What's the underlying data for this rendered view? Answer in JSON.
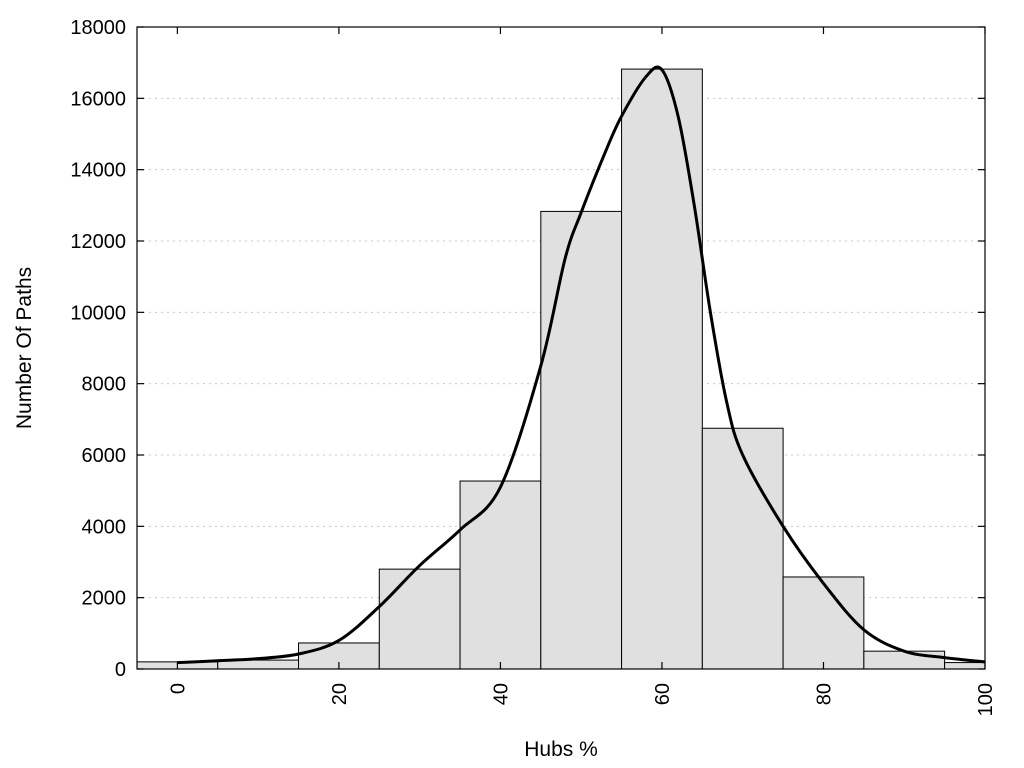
{
  "chart_data": {
    "type": "bar",
    "title": "",
    "xlabel": "Hubs %",
    "ylabel": "Number Of Paths",
    "xlim": [
      -5,
      100
    ],
    "ylim": [
      0,
      18000
    ],
    "grid": "horizontal dotted",
    "bin_width": 10,
    "bar_fill": "#e0e0e0",
    "bar_stroke": "#000000",
    "curve_color": "#000000",
    "x_ticks": [
      "0",
      "20",
      "40",
      "60",
      "80",
      "100"
    ],
    "y_ticks": [
      "0",
      "2000",
      "4000",
      "6000",
      "8000",
      "10000",
      "12000",
      "14000",
      "16000",
      "18000"
    ],
    "bins": [
      {
        "center": 0,
        "value": 200
      },
      {
        "center": 10,
        "value": 250
      },
      {
        "center": 20,
        "value": 730
      },
      {
        "center": 30,
        "value": 2800
      },
      {
        "center": 40,
        "value": 5270
      },
      {
        "center": 50,
        "value": 12830
      },
      {
        "center": 60,
        "value": 16820
      },
      {
        "center": 70,
        "value": 6750
      },
      {
        "center": 80,
        "value": 2580
      },
      {
        "center": 90,
        "value": 500
      },
      {
        "center": 100,
        "value": 180
      }
    ],
    "density_curve": [
      {
        "x": 0,
        "y": 180
      },
      {
        "x": 5,
        "y": 230
      },
      {
        "x": 10,
        "y": 290
      },
      {
        "x": 15,
        "y": 420
      },
      {
        "x": 20,
        "y": 800
      },
      {
        "x": 25,
        "y": 1750
      },
      {
        "x": 30,
        "y": 2900
      },
      {
        "x": 35,
        "y": 3900
      },
      {
        "x": 40,
        "y": 5100
      },
      {
        "x": 45,
        "y": 8500
      },
      {
        "x": 48,
        "y": 11500
      },
      {
        "x": 50,
        "y": 12800
      },
      {
        "x": 53,
        "y": 14500
      },
      {
        "x": 55,
        "y": 15500
      },
      {
        "x": 58,
        "y": 16600
      },
      {
        "x": 60,
        "y": 16800
      },
      {
        "x": 62,
        "y": 15500
      },
      {
        "x": 64,
        "y": 13000
      },
      {
        "x": 66,
        "y": 10000
      },
      {
        "x": 68,
        "y": 7500
      },
      {
        "x": 70,
        "y": 6000
      },
      {
        "x": 75,
        "y": 4000
      },
      {
        "x": 80,
        "y": 2400
      },
      {
        "x": 85,
        "y": 1100
      },
      {
        "x": 90,
        "y": 500
      },
      {
        "x": 95,
        "y": 320
      },
      {
        "x": 100,
        "y": 200
      }
    ]
  }
}
